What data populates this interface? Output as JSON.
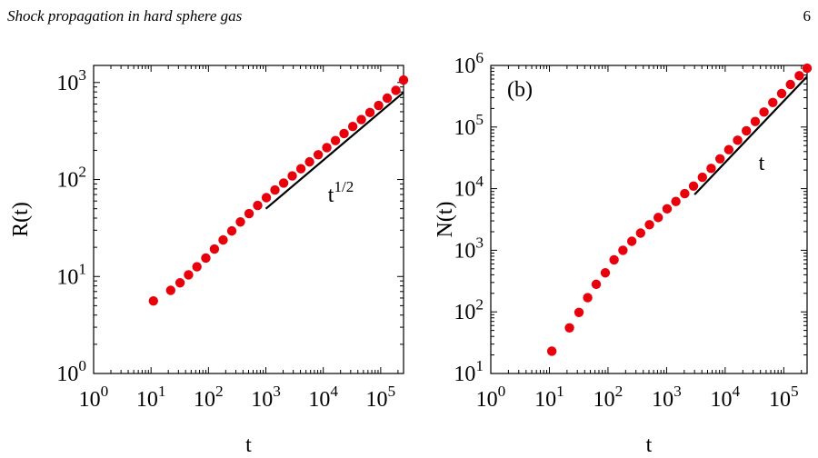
{
  "header": {
    "running_title": "Shock propagation in hard sphere gas",
    "page_number": "6"
  },
  "chart_data": [
    {
      "type": "scatter",
      "scale": "log-log",
      "panel_label": "",
      "xlabel": "t",
      "ylabel": "R(t)",
      "xlim": [
        1,
        250000
      ],
      "ylim": [
        1,
        1500
      ],
      "x_ticks": [
        {
          "base": "10",
          "exp": "0",
          "value": 1
        },
        {
          "base": "10",
          "exp": "1",
          "value": 10
        },
        {
          "base": "10",
          "exp": "2",
          "value": 100
        },
        {
          "base": "10",
          "exp": "3",
          "value": 1000
        },
        {
          "base": "10",
          "exp": "4",
          "value": 10000
        },
        {
          "base": "10",
          "exp": "5",
          "value": 100000
        }
      ],
      "y_ticks": [
        {
          "base": "10",
          "exp": "0",
          "value": 1
        },
        {
          "base": "10",
          "exp": "1",
          "value": 10
        },
        {
          "base": "10",
          "exp": "2",
          "value": 100
        },
        {
          "base": "10",
          "exp": "3",
          "value": 1000
        }
      ],
      "marker_color": "#e8000b",
      "series": [
        {
          "x": [
            11,
            22,
            32,
            45,
            63,
            90,
            127,
            180,
            255,
            360,
            510,
            720,
            1020,
            1440,
            2040,
            2880,
            4080,
            5760,
            8160,
            11520,
            16300,
            23000,
            32600,
            46000,
            65000,
            92000,
            130000,
            184000,
            250000
          ],
          "y": [
            5.6,
            7.2,
            8.6,
            10.4,
            12.6,
            15.5,
            19.2,
            23.8,
            29.5,
            36.5,
            44.5,
            54,
            65,
            78,
            92,
            109,
            129,
            152,
            180,
            213,
            252,
            298,
            352,
            415,
            490,
            580,
            690,
            830,
            1060
          ]
        }
      ],
      "guide_line": {
        "label_base": "t",
        "label_exp": "1/2",
        "x": [
          1000,
          250000
        ],
        "y": [
          50,
          790
        ]
      }
    },
    {
      "type": "scatter",
      "scale": "log-log",
      "panel_label": "(b)",
      "xlabel": "t",
      "ylabel": "N(t)",
      "xlim": [
        1,
        250000
      ],
      "ylim": [
        10,
        1000000
      ],
      "x_ticks": [
        {
          "base": "10",
          "exp": "0",
          "value": 1
        },
        {
          "base": "10",
          "exp": "1",
          "value": 10
        },
        {
          "base": "10",
          "exp": "2",
          "value": 100
        },
        {
          "base": "10",
          "exp": "3",
          "value": 1000
        },
        {
          "base": "10",
          "exp": "4",
          "value": 10000
        },
        {
          "base": "10",
          "exp": "5",
          "value": 100000
        }
      ],
      "y_ticks": [
        {
          "base": "10",
          "exp": "1",
          "value": 10
        },
        {
          "base": "10",
          "exp": "2",
          "value": 100
        },
        {
          "base": "10",
          "exp": "3",
          "value": 1000
        },
        {
          "base": "10",
          "exp": "4",
          "value": 10000
        },
        {
          "base": "10",
          "exp": "5",
          "value": 100000
        },
        {
          "base": "10",
          "exp": "6",
          "value": 1000000
        }
      ],
      "marker_color": "#e8000b",
      "series": [
        {
          "x": [
            11,
            22,
            32,
            45,
            63,
            90,
            127,
            180,
            255,
            360,
            510,
            720,
            1020,
            1440,
            2040,
            2880,
            4080,
            5760,
            8160,
            11520,
            16300,
            23000,
            32600,
            46000,
            65000,
            92000,
            130000,
            184000,
            250000
          ],
          "y": [
            23,
            55,
            98,
            170,
            280,
            430,
            700,
            1000,
            1400,
            1900,
            2600,
            3400,
            4700,
            6200,
            8300,
            11000,
            15300,
            21300,
            30500,
            43000,
            61000,
            87000,
            123000,
            175000,
            250000,
            350000,
            490000,
            680000,
            900000
          ]
        }
      ],
      "guide_line": {
        "label_base": "t",
        "label_exp": "",
        "x": [
          3000,
          250000
        ],
        "y": [
          8000,
          660000
        ]
      }
    }
  ]
}
